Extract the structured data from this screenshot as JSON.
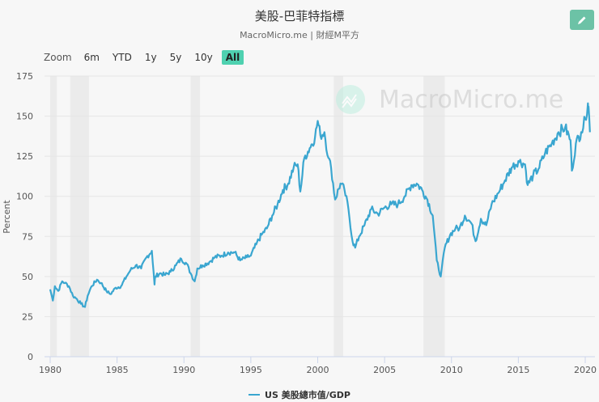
{
  "header": {
    "title": "美股-巴菲特指標",
    "subtitle": "MacroMicro.me | 財經M平方",
    "edit_icon": "pencil-icon"
  },
  "range_selector": {
    "label": "Zoom",
    "buttons": [
      "6m",
      "YTD",
      "1y",
      "5y",
      "10y",
      "All"
    ],
    "active": "All"
  },
  "watermark": {
    "text": "MacroMicro.me",
    "icon": "chart-logo-icon"
  },
  "colors": {
    "line": "#3aa6d0",
    "accent": "#4fd1b0",
    "edit_button": "#6cc2a6",
    "recession_band": "#ebebeb"
  },
  "legend": {
    "label": "US 美股總市值/GDP"
  },
  "chart_data": {
    "type": "line",
    "title": "美股-巴菲特指標",
    "subtitle": "MacroMicro.me | 財經M平方",
    "xlabel": "",
    "ylabel": "Percent",
    "xlim": [
      1980,
      2020.4
    ],
    "ylim": [
      0,
      175
    ],
    "x_ticks": [
      "1980",
      "1985",
      "1990",
      "1995",
      "2000",
      "2005",
      "2010",
      "2015",
      "2020"
    ],
    "y_ticks": [
      "0",
      "25",
      "50",
      "75",
      "100",
      "125",
      "150",
      "175"
    ],
    "grid": true,
    "legend_position": "bottom",
    "recession_bands": [
      [
        1980.0,
        1980.5
      ],
      [
        1981.5,
        1982.9
      ],
      [
        1990.5,
        1991.2
      ],
      [
        2001.2,
        2001.9
      ],
      [
        2007.9,
        2009.5
      ]
    ],
    "series": [
      {
        "name": "US 美股總市值/GDP",
        "x": [
          1980.0,
          1980.2,
          1980.35,
          1980.6,
          1980.9,
          1981.1,
          1981.4,
          1981.7,
          1982.0,
          1982.3,
          1982.6,
          1982.8,
          1983.1,
          1983.5,
          1983.8,
          1984.2,
          1984.5,
          1984.9,
          1985.3,
          1985.7,
          1986.0,
          1986.4,
          1986.8,
          1987.2,
          1987.6,
          1987.8,
          1987.85,
          1988.2,
          1988.6,
          1989.0,
          1989.4,
          1989.8,
          1990.2,
          1990.5,
          1990.8,
          1991.0,
          1991.4,
          1991.9,
          1992.3,
          1992.8,
          1993.3,
          1993.8,
          1994.2,
          1994.7,
          1995.0,
          1995.4,
          1995.8,
          1996.2,
          1996.6,
          1997.0,
          1997.4,
          1997.8,
          1998.2,
          1998.5,
          1998.7,
          1999.0,
          1999.4,
          1999.8,
          2000.0,
          2000.2,
          2000.5,
          2000.8,
          2001.0,
          2001.3,
          2001.7,
          2002.0,
          2002.3,
          2002.6,
          2002.8,
          2003.1,
          2003.5,
          2004.0,
          2004.5,
          2005.0,
          2005.5,
          2006.0,
          2006.5,
          2007.0,
          2007.4,
          2007.8,
          2008.2,
          2008.6,
          2008.9,
          2009.2,
          2009.5,
          2009.9,
          2010.3,
          2010.6,
          2011.0,
          2011.5,
          2011.8,
          2012.2,
          2012.6,
          2013.0,
          2013.5,
          2014.0,
          2014.5,
          2015.0,
          2015.5,
          2015.7,
          2016.1,
          2016.5,
          2017.0,
          2017.5,
          2018.0,
          2018.5,
          2018.9,
          2019.0,
          2019.3,
          2019.7,
          2020.0,
          2020.2,
          2020.25,
          2020.35
        ],
        "values": [
          42,
          35,
          44,
          41,
          47,
          46,
          44,
          38,
          36,
          33,
          31,
          38,
          44,
          48,
          46,
          41,
          39,
          43,
          44,
          50,
          54,
          57,
          55,
          62,
          66,
          45,
          50,
          52,
          51,
          53,
          57,
          61,
          58,
          52,
          47,
          55,
          57,
          59,
          62,
          63,
          65,
          65,
          60,
          62,
          63,
          70,
          76,
          80,
          88,
          95,
          104,
          108,
          118,
          120,
          103,
          124,
          130,
          137,
          147,
          138,
          140,
          124,
          118,
          98,
          108,
          104,
          92,
          72,
          68,
          75,
          82,
          92,
          89,
          93,
          95,
          95,
          100,
          107,
          108,
          104,
          98,
          88,
          60,
          50,
          68,
          76,
          80,
          80,
          88,
          83,
          72,
          86,
          82,
          95,
          102,
          110,
          118,
          122,
          120,
          107,
          113,
          117,
          127,
          133,
          140,
          143,
          135,
          116,
          133,
          140,
          148,
          158,
          156,
          140
        ]
      }
    ]
  }
}
